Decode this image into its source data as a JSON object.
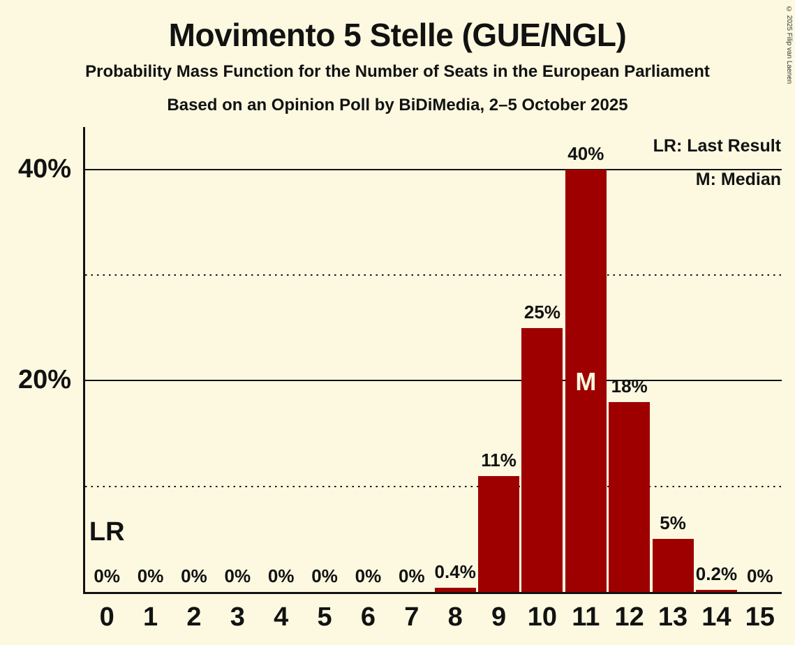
{
  "title": "Movimento 5 Stelle (GUE/NGL)",
  "subtitle": "Probability Mass Function for the Number of Seats in the European Parliament",
  "poll_line": "Based on an Opinion Poll by BiDiMedia, 2–5 October 2025",
  "copyright": "© 2025 Filip van Laenen",
  "legend": {
    "lr": "LR: Last Result",
    "m": "M: Median"
  },
  "annotations": {
    "lr": "LR",
    "median": "M"
  },
  "colors": {
    "background": "#FCF9E0",
    "bar": "#9E0000",
    "text": "#121212"
  },
  "chart_data": {
    "type": "bar",
    "title": "Movimento 5 Stelle (GUE/NGL)",
    "categories": [
      0,
      1,
      2,
      3,
      4,
      5,
      6,
      7,
      8,
      9,
      10,
      11,
      12,
      13,
      14,
      15
    ],
    "values": [
      0,
      0,
      0,
      0,
      0,
      0,
      0,
      0,
      0.4,
      11,
      25,
      40,
      18,
      5,
      0.2,
      0
    ],
    "bar_labels": [
      "0%",
      "0%",
      "0%",
      "0%",
      "0%",
      "0%",
      "0%",
      "0%",
      "0.4%",
      "11%",
      "25%",
      "40%",
      "18%",
      "5%",
      "0.2%",
      "0%"
    ],
    "ylim": [
      0,
      44
    ],
    "y_ticks": [
      {
        "value": 40,
        "label": "40%"
      },
      {
        "value": 30,
        "label": ""
      },
      {
        "value": 20,
        "label": "20%"
      },
      {
        "value": 10,
        "label": ""
      }
    ],
    "grid": "horizontal",
    "legend_position": "top-right",
    "median_category": 11,
    "last_result_category": 0
  }
}
